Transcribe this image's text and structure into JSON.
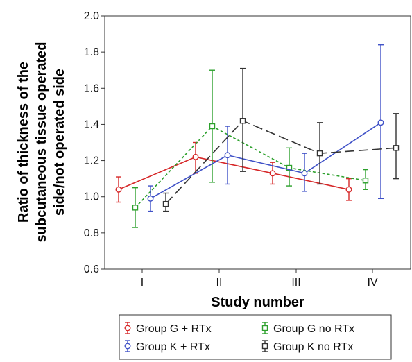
{
  "chart_data": {
    "type": "line",
    "categories": [
      "I",
      "II",
      "III",
      "IV"
    ],
    "xlabel": "Study number",
    "ylabel_lines": [
      "Ratio of thickness of the",
      "subcutaneous tissue operated",
      "side/not operated side"
    ],
    "ylim": [
      0.6,
      2.0
    ],
    "yticks": [
      "0.6",
      "0.8",
      "1.0",
      "1.2",
      "1.4",
      "1.6",
      "1.8",
      "2.0"
    ],
    "grid": false,
    "legend_position": "bottom",
    "series": [
      {
        "name": "Group G + RTx",
        "color": "#d62728",
        "dash": "solid",
        "marker": "circle",
        "values": [
          1.04,
          1.22,
          1.13,
          1.04
        ],
        "lower": [
          0.97,
          1.13,
          1.07,
          0.98
        ],
        "upper": [
          1.11,
          1.3,
          1.19,
          1.1
        ]
      },
      {
        "name": "Group G no RTx",
        "color": "#2ca02c",
        "dash": "dotted",
        "marker": "square",
        "values": [
          0.94,
          1.39,
          1.16,
          1.09
        ],
        "lower": [
          0.83,
          1.08,
          1.06,
          1.04
        ],
        "upper": [
          1.05,
          1.7,
          1.27,
          1.15
        ]
      },
      {
        "name": "Group K + RTx",
        "color": "#3f51c7",
        "dash": "solid",
        "marker": "circle",
        "values": [
          0.99,
          1.23,
          1.13,
          1.41
        ],
        "lower": [
          0.92,
          1.07,
          1.03,
          0.99
        ],
        "upper": [
          1.06,
          1.39,
          1.24,
          1.84
        ]
      },
      {
        "name": "Group K no RTx",
        "color": "#333333",
        "dash": "longdash",
        "marker": "square",
        "values": [
          0.96,
          1.42,
          1.24,
          1.27
        ],
        "lower": [
          0.92,
          1.14,
          1.07,
          1.1
        ],
        "upper": [
          1.02,
          1.71,
          1.41,
          1.46
        ]
      }
    ],
    "legend_rows": [
      [
        0,
        1
      ],
      [
        2,
        3
      ]
    ]
  }
}
